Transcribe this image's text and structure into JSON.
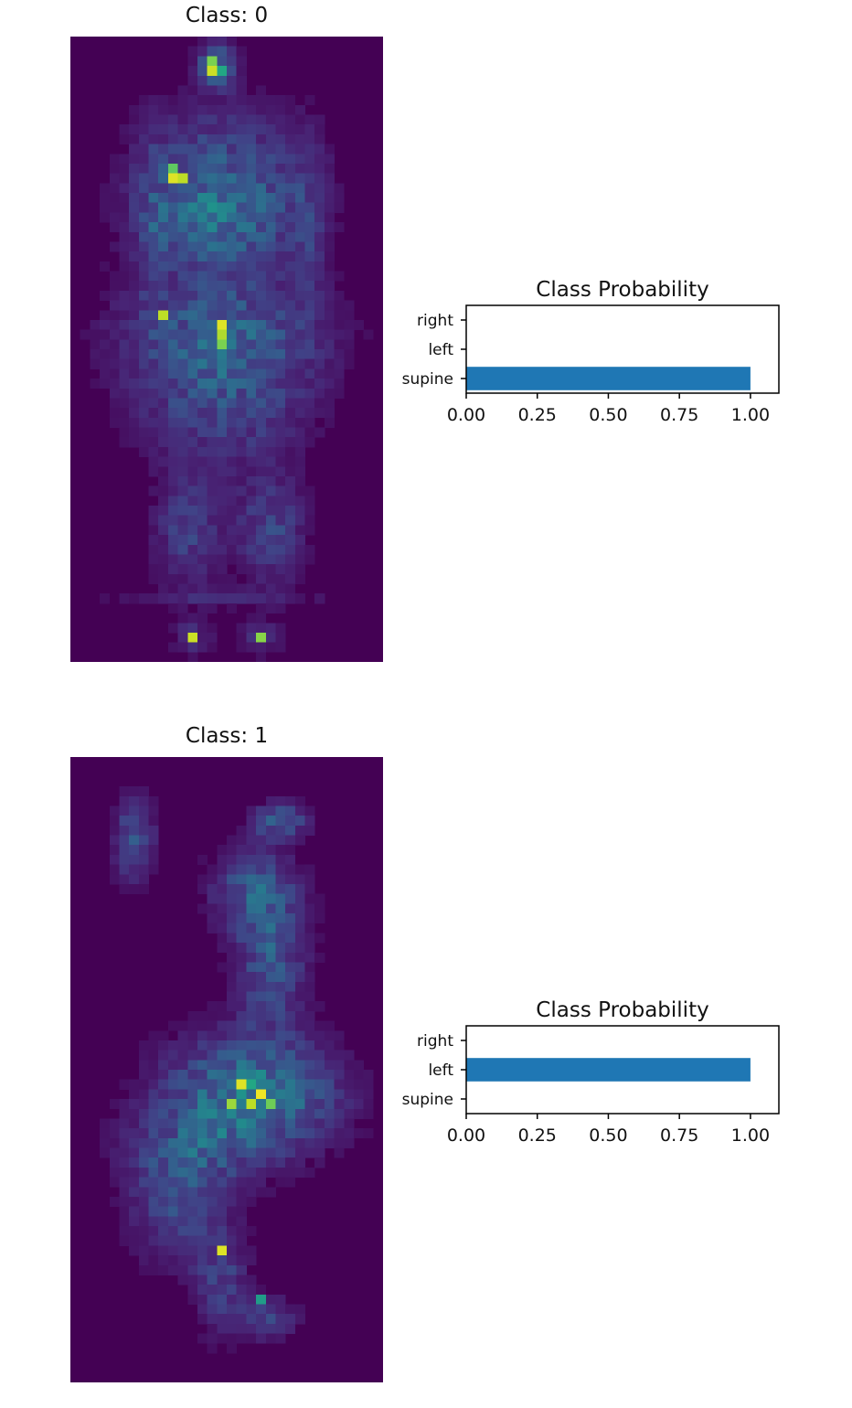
{
  "colors": {
    "viridis_dark": "#440154",
    "bar_blue": "#1f77b4",
    "axis_black": "#000000"
  },
  "panels": [
    {
      "image_title": "Class: 0",
      "heatmap_description": "pressure map, supine pose",
      "chart_data": {
        "type": "bar",
        "orientation": "horizontal",
        "title": "Class Probability",
        "categories": [
          "supine",
          "left",
          "right"
        ],
        "values": [
          1.0,
          0.0,
          0.0
        ],
        "xlim": [
          0,
          1.1
        ],
        "xticks": [
          "0.00",
          "0.25",
          "0.50",
          "0.75",
          "1.00"
        ],
        "xtick_values": [
          0,
          0.25,
          0.5,
          0.75,
          1.0
        ],
        "grid": false
      }
    },
    {
      "image_title": "Class: 1",
      "heatmap_description": "pressure map, side-lying pose",
      "chart_data": {
        "type": "bar",
        "orientation": "horizontal",
        "title": "Class Probability",
        "categories": [
          "supine",
          "left",
          "right"
        ],
        "values": [
          0.0,
          1.0,
          0.0
        ],
        "xlim": [
          0,
          1.1
        ],
        "xticks": [
          "0.00",
          "0.25",
          "0.50",
          "0.75",
          "1.00"
        ],
        "xtick_values": [
          0,
          0.25,
          0.5,
          0.75,
          1.0
        ],
        "grid": false
      }
    }
  ]
}
